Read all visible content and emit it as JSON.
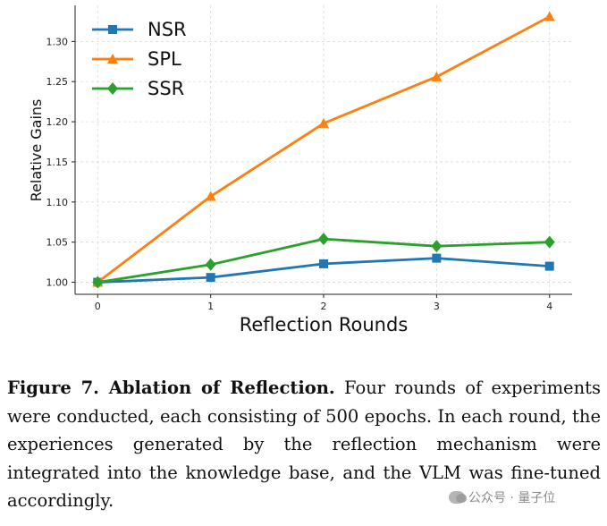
{
  "chart_data": {
    "type": "line",
    "x": [
      0,
      1,
      2,
      3,
      4
    ],
    "xlabel": "Reflection Rounds",
    "ylabel": "Relative Gains",
    "xlim": [
      -0.2,
      4.2
    ],
    "ylim": [
      0.985,
      1.345
    ],
    "x_ticks": [
      "0",
      "1",
      "2",
      "3",
      "4"
    ],
    "y_ticks": [
      "1.00",
      "1.05",
      "1.10",
      "1.15",
      "1.20",
      "1.25",
      "1.30"
    ],
    "grid": true,
    "legend_position": "top-left",
    "series": [
      {
        "name": "NSR",
        "color": "#1f77b4",
        "marker": "square",
        "values": [
          1.0,
          1.006,
          1.023,
          1.03,
          1.02
        ]
      },
      {
        "name": "SPL",
        "color": "#ff7f0e",
        "marker": "triangle",
        "values": [
          1.0,
          1.107,
          1.198,
          1.256,
          1.331
        ]
      },
      {
        "name": "SSR",
        "color": "#2ca02c",
        "marker": "diamond",
        "values": [
          1.0,
          1.022,
          1.054,
          1.045,
          1.05
        ]
      }
    ]
  },
  "caption": {
    "label": "Figure 7. Ablation of Reflection.",
    "text": " Four rounds of experiments were conducted, each consisting of 500 epochs. In each round, the experiences generated by the reflection mechanism were integrated into the knowledge base, and the VLM was fine-tuned accordingly."
  },
  "watermark": {
    "text": "公众号 · 量子位",
    "icon": "wechat-icon"
  }
}
